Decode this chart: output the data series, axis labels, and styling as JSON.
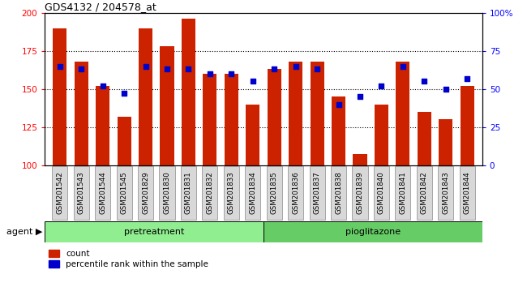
{
  "title": "GDS4132 / 204578_at",
  "samples": [
    "GSM201542",
    "GSM201543",
    "GSM201544",
    "GSM201545",
    "GSM201829",
    "GSM201830",
    "GSM201831",
    "GSM201832",
    "GSM201833",
    "GSM201834",
    "GSM201835",
    "GSM201836",
    "GSM201837",
    "GSM201838",
    "GSM201839",
    "GSM201840",
    "GSM201841",
    "GSM201842",
    "GSM201843",
    "GSM201844"
  ],
  "counts": [
    190,
    168,
    152,
    132,
    190,
    178,
    196,
    160,
    160,
    140,
    163,
    168,
    168,
    145,
    107,
    140,
    168,
    135,
    130,
    152
  ],
  "percentiles": [
    65,
    63,
    52,
    47,
    65,
    63,
    63,
    60,
    60,
    55,
    63,
    65,
    63,
    40,
    45,
    52,
    65,
    55,
    50,
    57
  ],
  "ylim_left": [
    100,
    200
  ],
  "ylim_right": [
    0,
    100
  ],
  "yticks_left": [
    100,
    125,
    150,
    175,
    200
  ],
  "yticks_right": [
    0,
    25,
    50,
    75,
    100
  ],
  "bar_color": "#cc2200",
  "dot_color": "#0000cc",
  "n_pretreatment": 10,
  "n_pioglitazone": 10,
  "group_label_pretreatment": "pretreatment",
  "group_label_pioglitazone": "pioglitazone",
  "group_color_pre": "#90ee90",
  "group_color_pio": "#66cc66",
  "agent_label": "agent",
  "legend_count_label": "count",
  "legend_pct_label": "percentile rank within the sample",
  "grid_yticks": [
    125,
    150,
    175
  ]
}
